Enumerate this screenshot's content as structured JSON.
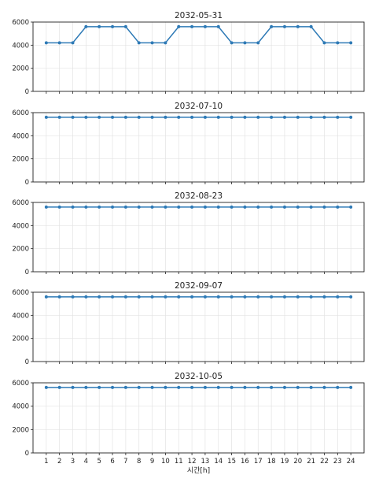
{
  "colors": {
    "series": "#2e7ab6"
  },
  "chart_data": [
    {
      "type": "line",
      "title": "2032-05-31",
      "x": [
        1,
        2,
        3,
        4,
        5,
        6,
        7,
        8,
        9,
        10,
        11,
        12,
        13,
        14,
        15,
        16,
        17,
        18,
        19,
        20,
        21,
        22,
        23,
        24
      ],
      "values": [
        4200,
        4200,
        4200,
        5600,
        5600,
        5600,
        5600,
        4200,
        4200,
        4200,
        5600,
        5600,
        5600,
        5600,
        4200,
        4200,
        4200,
        5600,
        5600,
        5600,
        5600,
        4200,
        4200,
        4200
      ],
      "ylim": [
        0,
        6000
      ],
      "yticks": [
        "0",
        "2000",
        "4000",
        "6000"
      ],
      "grid": true
    },
    {
      "type": "line",
      "title": "2032-07-10",
      "x": [
        1,
        2,
        3,
        4,
        5,
        6,
        7,
        8,
        9,
        10,
        11,
        12,
        13,
        14,
        15,
        16,
        17,
        18,
        19,
        20,
        21,
        22,
        23,
        24
      ],
      "values": [
        5600,
        5600,
        5600,
        5600,
        5600,
        5600,
        5600,
        5600,
        5600,
        5600,
        5600,
        5600,
        5600,
        5600,
        5600,
        5600,
        5600,
        5600,
        5600,
        5600,
        5600,
        5600,
        5600,
        5600
      ],
      "ylim": [
        0,
        6000
      ],
      "yticks": [
        "0",
        "2000",
        "4000",
        "6000"
      ],
      "grid": true
    },
    {
      "type": "line",
      "title": "2032-08-23",
      "x": [
        1,
        2,
        3,
        4,
        5,
        6,
        7,
        8,
        9,
        10,
        11,
        12,
        13,
        14,
        15,
        16,
        17,
        18,
        19,
        20,
        21,
        22,
        23,
        24
      ],
      "values": [
        5600,
        5600,
        5600,
        5600,
        5600,
        5600,
        5600,
        5600,
        5600,
        5600,
        5600,
        5600,
        5600,
        5600,
        5600,
        5600,
        5600,
        5600,
        5600,
        5600,
        5600,
        5600,
        5600,
        5600
      ],
      "ylim": [
        0,
        6000
      ],
      "yticks": [
        "0",
        "2000",
        "4000",
        "6000"
      ],
      "grid": true
    },
    {
      "type": "line",
      "title": "2032-09-07",
      "x": [
        1,
        2,
        3,
        4,
        5,
        6,
        7,
        8,
        9,
        10,
        11,
        12,
        13,
        14,
        15,
        16,
        17,
        18,
        19,
        20,
        21,
        22,
        23,
        24
      ],
      "values": [
        5600,
        5600,
        5600,
        5600,
        5600,
        5600,
        5600,
        5600,
        5600,
        5600,
        5600,
        5600,
        5600,
        5600,
        5600,
        5600,
        5600,
        5600,
        5600,
        5600,
        5600,
        5600,
        5600,
        5600
      ],
      "ylim": [
        0,
        6000
      ],
      "yticks": [
        "0",
        "2000",
        "4000",
        "6000"
      ],
      "grid": true
    },
    {
      "type": "line",
      "title": "2032-10-05",
      "x": [
        1,
        2,
        3,
        4,
        5,
        6,
        7,
        8,
        9,
        10,
        11,
        12,
        13,
        14,
        15,
        16,
        17,
        18,
        19,
        20,
        21,
        22,
        23,
        24
      ],
      "values": [
        5600,
        5600,
        5600,
        5600,
        5600,
        5600,
        5600,
        5600,
        5600,
        5600,
        5600,
        5600,
        5600,
        5600,
        5600,
        5600,
        5600,
        5600,
        5600,
        5600,
        5600,
        5600,
        5600,
        5600
      ],
      "ylim": [
        0,
        6000
      ],
      "yticks": [
        "0",
        "2000",
        "4000",
        "6000"
      ],
      "xticks": [
        "1",
        "2",
        "3",
        "4",
        "5",
        "6",
        "7",
        "8",
        "9",
        "10",
        "11",
        "12",
        "13",
        "14",
        "15",
        "16",
        "17",
        "18",
        "19",
        "20",
        "21",
        "22",
        "23",
        "24"
      ],
      "xlabel": "시간[h]",
      "grid": true
    }
  ]
}
